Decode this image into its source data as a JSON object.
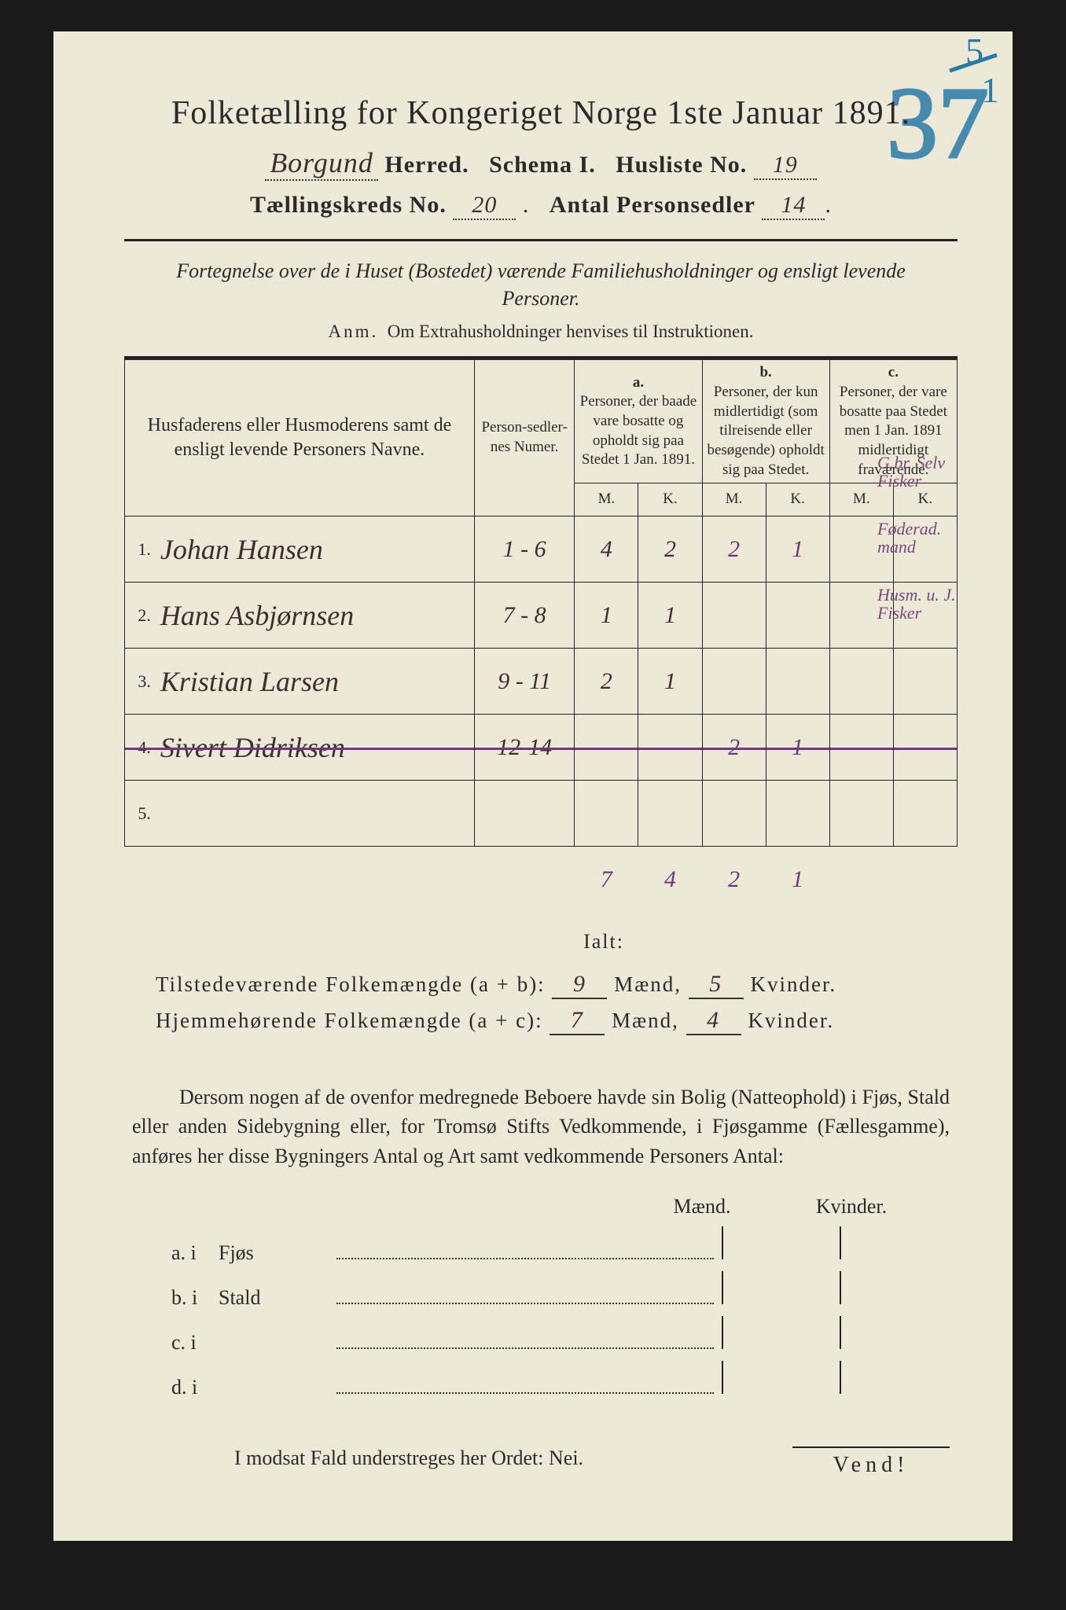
{
  "colors": {
    "page_bg": "#ede8d8",
    "ink": "#2a2a2a",
    "purple_ink": "#6a3a7a",
    "crayon_blue": "#2a7aa8",
    "margin_violet": "#7a4a7a"
  },
  "title": "Folketælling for Kongeriget Norge 1ste Januar 1891.",
  "header": {
    "herred_value": "Borgund",
    "herred_label": "Herred.",
    "schema_label": "Schema I.",
    "husliste_label": "Husliste No.",
    "husliste_value": "19",
    "kreds_label": "Tællingskreds No.",
    "kreds_value": "20",
    "sedler_label": "Antal Personsedler",
    "sedler_value": "14",
    "corner_fraction_top": "5",
    "corner_fraction_bottom": "1",
    "crayon_mark": "37"
  },
  "subtitle": "Fortegnelse over de i Huset (Bostedet) værende Familiehusholdninger og ensligt levende Personer.",
  "anm_label": "Anm.",
  "anm_text": "Om Extrahusholdninger henvises til Instruktionen.",
  "cols": {
    "name": "Husfaderens eller Husmoderens samt de ensligt levende Personers Navne.",
    "numer": "Person-sedler-nes Numer.",
    "a_label": "a.",
    "a_text": "Personer, der baade vare bosatte og opholdt sig paa Stedet 1 Jan. 1891.",
    "b_label": "b.",
    "b_text": "Personer, der kun midlertidigt (som tilreisende eller besøgende) opholdt sig paa Stedet.",
    "c_label": "c.",
    "c_text": "Personer, der vare bosatte paa Stedet men 1 Jan. 1891 midlertidigt fraværende.",
    "M": "M.",
    "K": "K."
  },
  "rows": [
    {
      "n": "1.",
      "name": "Johan Hansen",
      "numer": "1 - 6",
      "aM": "4",
      "aK": "2",
      "bM": "2",
      "bK": "1",
      "cM": "",
      "cK": "",
      "note": "G.br.\nSelv\nFisker"
    },
    {
      "n": "2.",
      "name": "Hans Asbjørnsen",
      "numer": "7 - 8",
      "aM": "1",
      "aK": "1",
      "bM": "",
      "bK": "",
      "cM": "",
      "cK": "",
      "note": "Føderad.\nmand"
    },
    {
      "n": "3.",
      "name": "Kristian Larsen",
      "numer": "9 - 11",
      "aM": "2",
      "aK": "1",
      "bM": "",
      "bK": "",
      "cM": "",
      "cK": "",
      "note": "Husm.\nu. J.\nFisker"
    },
    {
      "n": "4.",
      "name": "Sivert Didriksen",
      "numer": "12-14",
      "aM": "",
      "aK": "",
      "bM": "2",
      "bK": "1",
      "cM": "",
      "cK": "",
      "note": "",
      "struck": true
    },
    {
      "n": "5.",
      "name": "",
      "numer": "",
      "aM": "",
      "aK": "",
      "bM": "",
      "bK": "",
      "cM": "",
      "cK": "",
      "note": ""
    }
  ],
  "col_totals": {
    "aM": "7",
    "aK": "4",
    "bM": "2",
    "bK": "1"
  },
  "ialt": "Ialt:",
  "sums": {
    "pres_label": "Tilstedeværende Folkemængde (a + b):",
    "pres_M": "9",
    "pres_K": "5",
    "home_label": "Hjemmehørende Folkemængde (a + c):",
    "home_M": "7",
    "home_K": "4",
    "M_word": "Mænd,",
    "K_word": "Kvinder."
  },
  "para": "Dersom nogen af de ovenfor medregnede Beboere havde sin Bolig (Natteophold) i Fjøs, Stald eller anden Sidebygning eller, for Tromsø Stifts Vedkommende, i Fjøsgamme (Fællesgamme), anføres her disse Bygningers Antal og Art samt vedkommende Personers Antal:",
  "mk_M": "Mænd.",
  "mk_K": "Kvinder.",
  "buildings": [
    {
      "lbl": "a.  i",
      "name": "Fjøs"
    },
    {
      "lbl": "b.  i",
      "name": "Stald"
    },
    {
      "lbl": "c.  i",
      "name": ""
    },
    {
      "lbl": "d.  i",
      "name": ""
    }
  ],
  "nei": "I modsat Fald understreges her Ordet: Nei.",
  "vend": "Vend!"
}
